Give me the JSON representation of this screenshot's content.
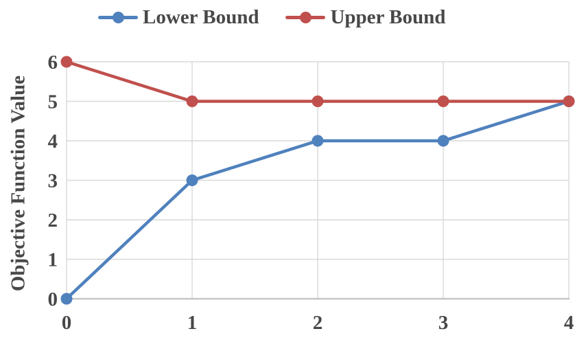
{
  "chart_data": {
    "type": "line",
    "x": [
      0,
      1,
      2,
      3,
      4
    ],
    "series": [
      {
        "name": "Lower Bound",
        "color": "#4F81BD",
        "values": [
          0,
          3,
          4,
          4,
          5
        ]
      },
      {
        "name": "Upper Bound",
        "color": "#C0504D",
        "values": [
          6,
          5,
          5,
          5,
          5
        ]
      }
    ],
    "title": "",
    "xlabel": "",
    "ylabel": "Objective Function Value",
    "xlim": [
      0,
      4
    ],
    "ylim": [
      0,
      6
    ],
    "x_ticks": [
      0,
      1,
      2,
      3,
      4
    ],
    "y_ticks": [
      0,
      1,
      2,
      3,
      4,
      5,
      6
    ],
    "grid": true,
    "legend_position": "top",
    "marker": "circle"
  },
  "colors": {
    "gridline": "#D9D9D9",
    "axis_line": "#C6C6C6",
    "tick_text": "#484848",
    "background": "#FFFFFF"
  }
}
